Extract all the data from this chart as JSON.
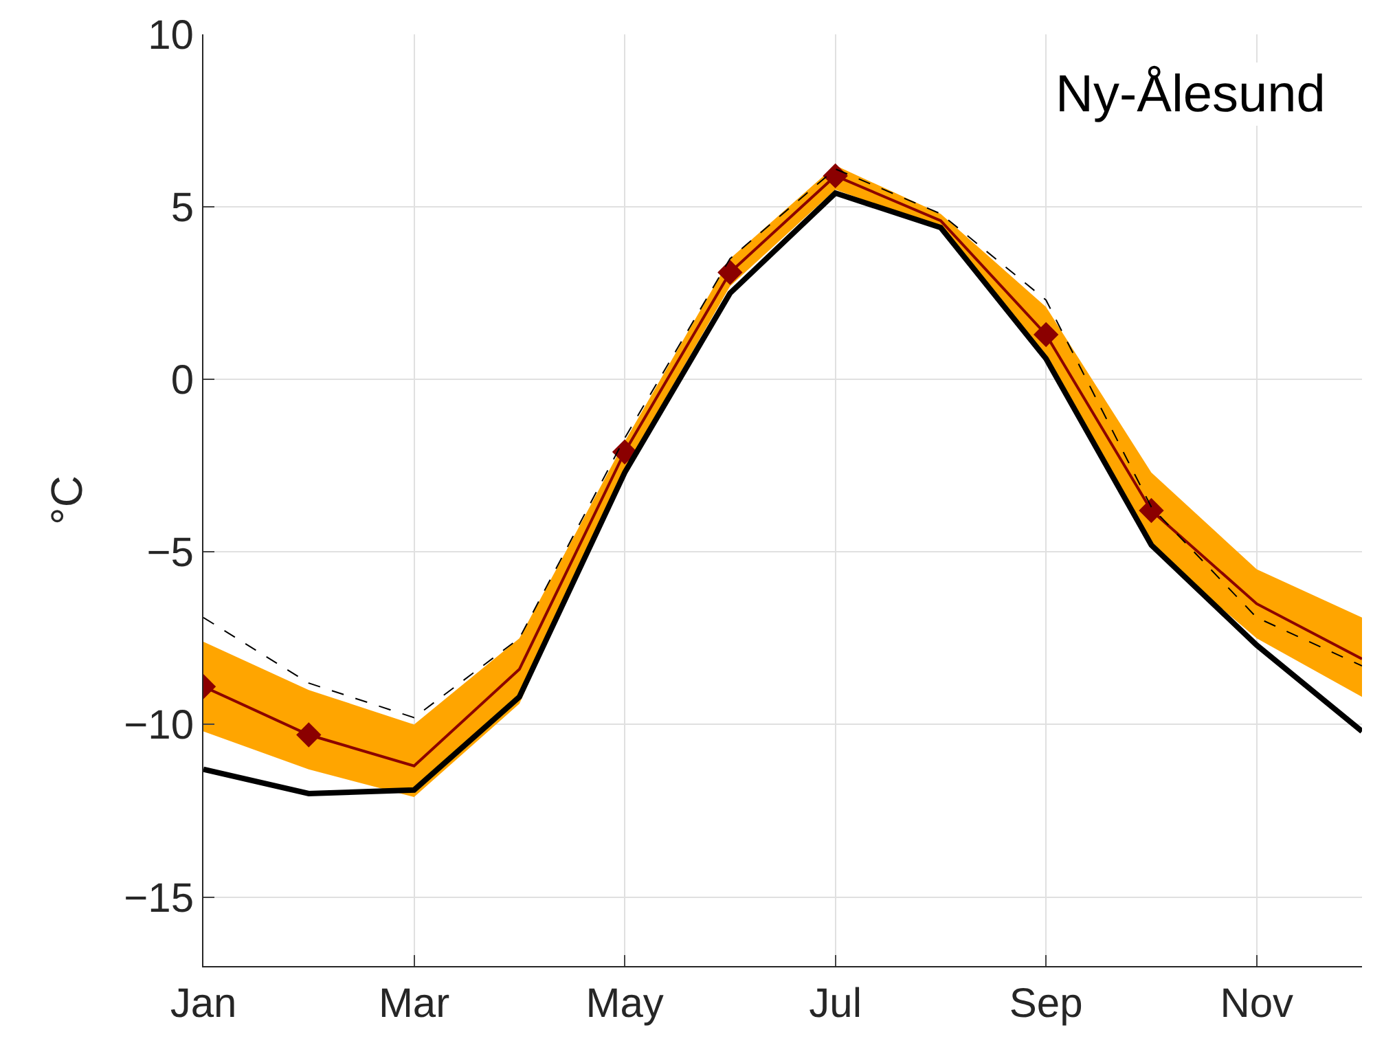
{
  "chart_data": {
    "type": "line",
    "ylabel": "°C",
    "annotations": [
      "Ny-Ålesund"
    ],
    "categories": [
      "Jan",
      null,
      "Mar",
      null,
      "May",
      null,
      "Jul",
      null,
      "Sep",
      null,
      "Nov",
      null
    ],
    "ylim": [
      -17,
      10
    ],
    "yticks": [
      {
        "value": -15,
        "label": "−15"
      },
      {
        "value": -10,
        "label": "−10"
      },
      {
        "value": -5,
        "label": "−5"
      },
      0,
      5,
      10
    ],
    "grid": true,
    "series": [
      {
        "color": "#8b0000",
        "line_style": "solid",
        "marker": "none",
        "values": [
          -8.9,
          -10.3,
          -11.2,
          -8.4,
          -2.1,
          3.1,
          5.9,
          4.6,
          1.3,
          -3.8,
          -6.5,
          -8.1
        ],
        "lower": [
          -10.2,
          -11.3,
          -12.1,
          -9.4,
          -2.6,
          2.7,
          5.5,
          4.4,
          0.6,
          -4.9,
          -7.5,
          -9.2
        ],
        "upper": [
          -7.6,
          -9.0,
          -10.0,
          -7.5,
          -1.8,
          3.5,
          6.2,
          4.8,
          2.1,
          -2.7,
          -5.5,
          -6.9
        ]
      },
      {
        "color": "#000000",
        "line_style": "solid",
        "marker": "none",
        "values": [
          -11.3,
          -12.0,
          -11.9,
          -9.2,
          -2.7,
          2.5,
          5.4,
          4.4,
          0.6,
          -4.8,
          -7.7,
          -10.2
        ]
      },
      {
        "color": "#000000",
        "line_style": "dashed",
        "marker": "none",
        "values": [
          -6.9,
          -8.8,
          -9.8,
          -7.5,
          -1.7,
          3.5,
          6.1,
          4.8,
          2.3,
          -3.7,
          -6.9,
          -8.3
        ]
      },
      {
        "type": "scatter",
        "color": "#8b0000",
        "marker": "diamond",
        "values": [
          -8.9,
          -10.3,
          null,
          null,
          -2.1,
          3.1,
          5.9,
          null,
          1.3,
          -3.8,
          null,
          null
        ]
      }
    ]
  }
}
